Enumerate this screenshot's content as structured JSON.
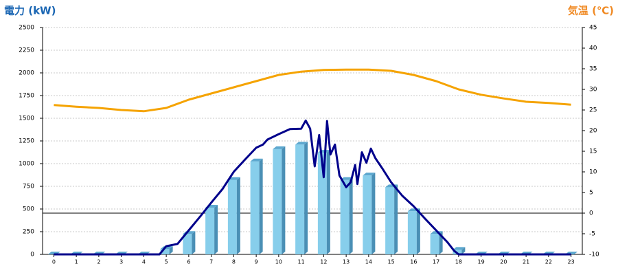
{
  "chart_data": {
    "type": "bar",
    "y_label": "電力 (kW)",
    "y2_label": "気温 (℃)",
    "categories": [
      "0",
      "1",
      "2",
      "3",
      "4",
      "5",
      "6",
      "7",
      "8",
      "9",
      "10",
      "11",
      "12",
      "13",
      "14",
      "15",
      "16",
      "17",
      "18",
      "19",
      "20",
      "21",
      "22",
      "23"
    ],
    "series": [
      {
        "type": "bar",
        "color": "#87ceeb",
        "values": [
          0,
          0,
          0,
          0,
          0,
          60,
          225,
          515,
          820,
          1025,
          1160,
          1210,
          1120,
          820,
          870,
          740,
          475,
          225,
          50,
          0,
          0,
          0,
          0,
          0
        ]
      },
      {
        "type": "line",
        "color": "#00008b",
        "x": [
          0,
          4.7,
          5,
          5.5,
          6,
          6.5,
          7,
          7.5,
          8,
          8.5,
          9,
          9.3,
          9.5,
          10,
          10.5,
          11,
          11.2,
          11.4,
          11.6,
          11.8,
          12,
          12.15,
          12.3,
          12.5,
          12.7,
          13,
          13.2,
          13.4,
          13.5,
          13.7,
          13.9,
          14.1,
          14.3,
          14.6,
          15,
          15.5,
          16,
          16.5,
          17,
          17.5,
          17.8,
          18,
          23
        ],
        "values": [
          0,
          0,
          90,
          115,
          265,
          415,
          570,
          720,
          910,
          1045,
          1175,
          1210,
          1265,
          1325,
          1380,
          1385,
          1475,
          1385,
          970,
          1315,
          850,
          1470,
          1100,
          1210,
          870,
          740,
          795,
          985,
          775,
          1125,
          1010,
          1165,
          1060,
          950,
          795,
          645,
          530,
          395,
          265,
          135,
          40,
          0,
          0
        ]
      },
      {
        "type": "line",
        "axis": "y2",
        "color": "#f5a300",
        "values": [
          26.2,
          25.8,
          25.5,
          25,
          24.7,
          25.5,
          27.5,
          29,
          30.5,
          32,
          33.5,
          34.3,
          34.7,
          34.8,
          34.8,
          34.5,
          33.5,
          32,
          30,
          28.7,
          27.8,
          27,
          26.7,
          26.3
        ]
      }
    ],
    "ylim": [
      0,
      2500
    ],
    "yticks": [
      0,
      250,
      500,
      750,
      1000,
      1250,
      1500,
      1750,
      2000,
      2250,
      2500
    ],
    "y2lim": [
      -10,
      45
    ],
    "y2ticks": [
      -10,
      -5,
      0,
      5,
      10,
      15,
      20,
      25,
      30,
      35,
      40,
      45
    ],
    "grid": true
  }
}
